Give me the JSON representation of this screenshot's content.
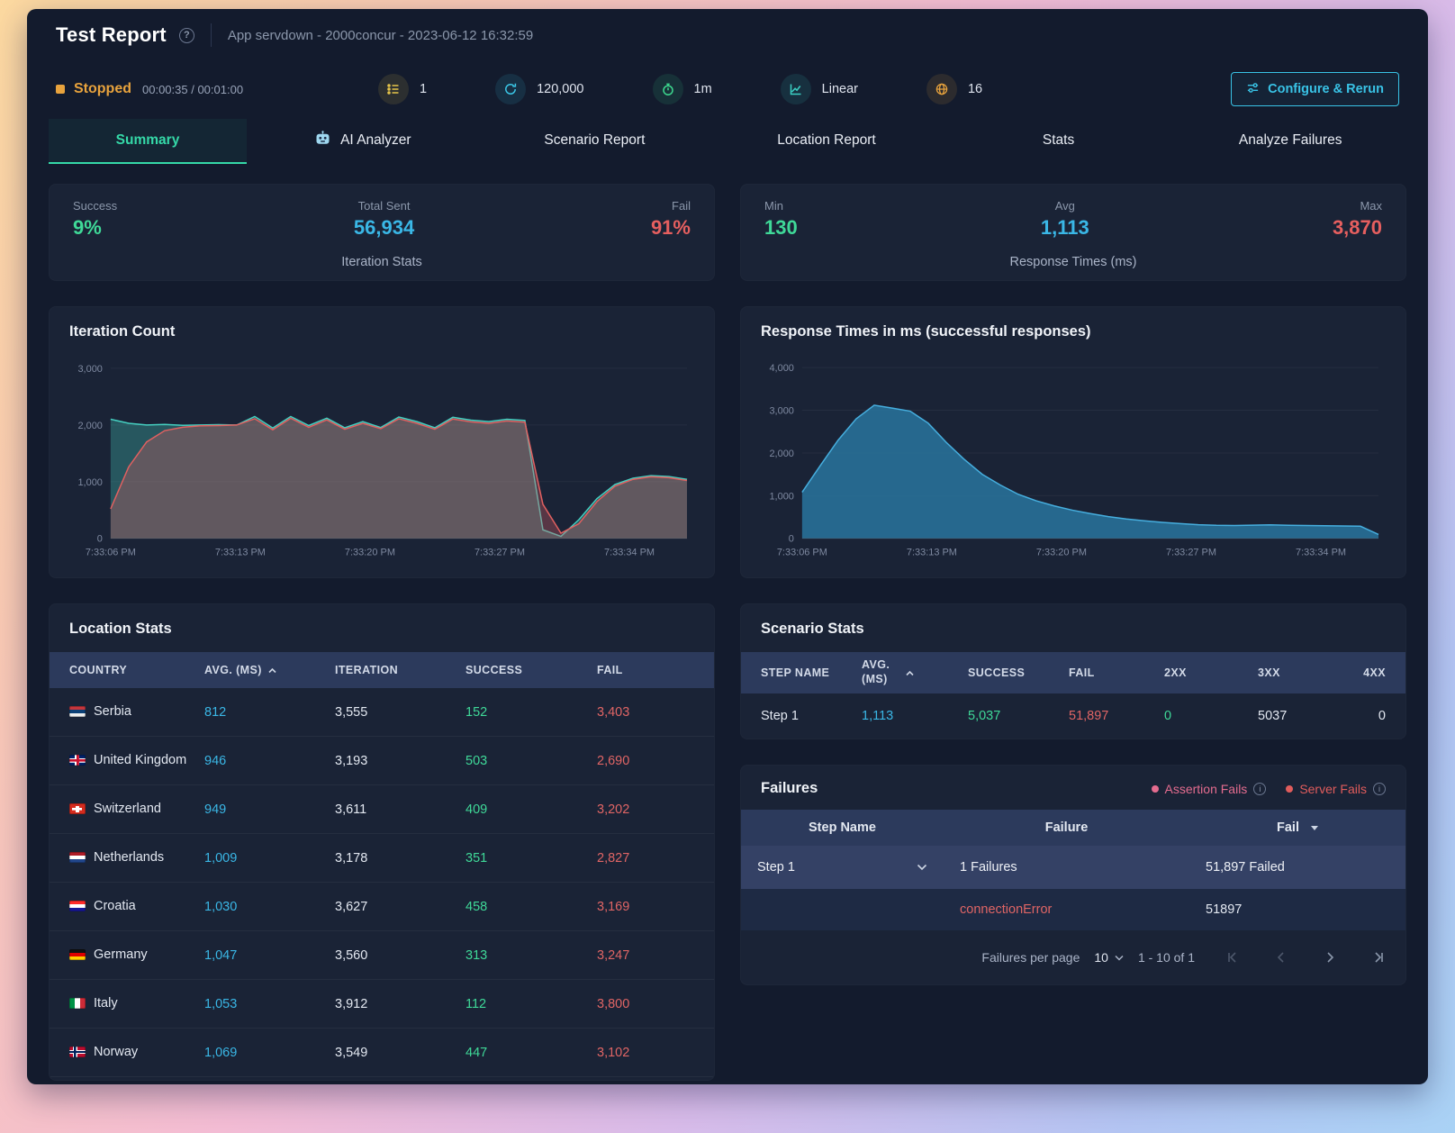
{
  "header": {
    "title": "Test Report",
    "subtitle": "App servdown - 2000concur - 2023-06-12 16:32:59"
  },
  "statusbar": {
    "status": "Stopped",
    "time": "00:00:35 / 00:01:00",
    "metrics": [
      {
        "name": "scenarios",
        "value": "1"
      },
      {
        "name": "iterations",
        "value": "120,000"
      },
      {
        "name": "duration",
        "value": "1m"
      },
      {
        "name": "ramp-type",
        "value": "Linear"
      },
      {
        "name": "locations",
        "value": "16"
      }
    ],
    "configure_button": "Configure & Rerun"
  },
  "tabs": [
    {
      "label": "Summary",
      "active": true
    },
    {
      "label": "AI Analyzer",
      "active": false
    },
    {
      "label": "Scenario Report",
      "active": false
    },
    {
      "label": "Location Report",
      "active": false
    },
    {
      "label": "Stats",
      "active": false
    },
    {
      "label": "Analyze Failures",
      "active": false
    }
  ],
  "iteration_stats": {
    "title": "Iteration Stats",
    "success_label": "Success",
    "success_value": "9%",
    "total_label": "Total Sent",
    "total_value": "56,934",
    "fail_label": "Fail",
    "fail_value": "91%"
  },
  "response_times": {
    "title": "Response Times (ms)",
    "min_label": "Min",
    "min_value": "130",
    "avg_label": "Avg",
    "avg_value": "1,113",
    "max_label": "Max",
    "max_value": "3,870"
  },
  "chart_data": [
    {
      "type": "area",
      "title": "Iteration Count",
      "x_labels": [
        "7:33:06 PM",
        "7:33:13 PM",
        "7:33:20 PM",
        "7:33:27 PM",
        "7:33:34 PM"
      ],
      "x_label_span": 0.9,
      "y_ticks": [
        {
          "v": 0,
          "label": "0"
        },
        {
          "v": 1000,
          "label": "1,000"
        },
        {
          "v": 2000,
          "label": "2,000"
        },
        {
          "v": 3000,
          "label": "3,000"
        }
      ],
      "ymax": 3200,
      "ylim": [
        0,
        3200
      ],
      "legend_position": "none",
      "grid": true,
      "series": [
        {
          "name": "success",
          "color": "#45cfc0",
          "fill": "rgba(69,207,192,0.30)",
          "values": [
            2100,
            2030,
            2000,
            2010,
            1995,
            2000,
            2005,
            2000,
            2150,
            1945,
            2150,
            1990,
            2120,
            1950,
            2060,
            1955,
            2140,
            2060,
            1950,
            2135,
            2085,
            2060,
            2100,
            2080,
            150,
            35,
            330,
            700,
            950,
            1060,
            1105,
            1090,
            1040
          ]
        },
        {
          "name": "fail",
          "color": "#e06060",
          "fill": "rgba(205,92,98,0.35)",
          "values": [
            520,
            1260,
            1700,
            1900,
            1960,
            1985,
            1990,
            2000,
            2110,
            1915,
            2120,
            1960,
            2090,
            1925,
            2030,
            1935,
            2110,
            2030,
            1925,
            2105,
            2055,
            2030,
            2070,
            2050,
            600,
            90,
            260,
            650,
            920,
            1040,
            1085,
            1070,
            1020
          ]
        }
      ]
    },
    {
      "type": "area",
      "title": "Response Times in ms (successful responses)",
      "x_labels": [
        "7:33:06 PM",
        "7:33:13 PM",
        "7:33:20 PM",
        "7:33:27 PM",
        "7:33:34 PM"
      ],
      "x_label_span": 0.9,
      "y_ticks": [
        {
          "v": 0,
          "label": "0"
        },
        {
          "v": 1000,
          "label": "1,000"
        },
        {
          "v": 2000,
          "label": "2,000"
        },
        {
          "v": 3000,
          "label": "3,000"
        },
        {
          "v": 4000,
          "label": "4,000"
        }
      ],
      "ymax": 4250,
      "ylim": [
        0,
        4250
      ],
      "legend_position": "none",
      "grid": true,
      "series": [
        {
          "name": "response_time",
          "color": "#46aede",
          "fill": "rgba(41,116,158,0.85)",
          "values": [
            1080,
            1700,
            2300,
            2800,
            3120,
            3050,
            2980,
            2700,
            2250,
            1850,
            1500,
            1250,
            1030,
            880,
            760,
            660,
            580,
            510,
            455,
            410,
            375,
            345,
            320,
            305,
            300,
            310,
            315,
            305,
            300,
            295,
            290,
            285,
            90
          ]
        }
      ]
    }
  ],
  "location_stats": {
    "title": "Location Stats",
    "columns": [
      "COUNTRY",
      "AVG. (MS)",
      "ITERATION",
      "SUCCESS",
      "FAIL"
    ],
    "sorted_column": "AVG. (MS)",
    "sort_direction": "asc",
    "rows": [
      {
        "country": "Serbia",
        "avg": "812",
        "iteration": "3,555",
        "success": "152",
        "fail": "3,403",
        "flag": {
          "type": "h",
          "colors": [
            "#c6363c",
            "#0c4076",
            "#eeeeee"
          ]
        }
      },
      {
        "country": "United Kingdom",
        "avg": "946",
        "iteration": "3,193",
        "success": "503",
        "fail": "2,690",
        "flag": {
          "type": "uk",
          "colors": [
            "#012169",
            "#ffffff",
            "#c8102e"
          ]
        }
      },
      {
        "country": "Switzerland",
        "avg": "949",
        "iteration": "3,611",
        "success": "409",
        "fail": "3,202",
        "flag": {
          "type": "cross",
          "colors": [
            "#d52b1e",
            "#ffffff"
          ]
        }
      },
      {
        "country": "Netherlands",
        "avg": "1,009",
        "iteration": "3,178",
        "success": "351",
        "fail": "2,827",
        "flag": {
          "type": "h",
          "colors": [
            "#ae1c28",
            "#ffffff",
            "#21468b"
          ]
        }
      },
      {
        "country": "Croatia",
        "avg": "1,030",
        "iteration": "3,627",
        "success": "458",
        "fail": "3,169",
        "flag": {
          "type": "h",
          "colors": [
            "#ff2b2b",
            "#ffffff",
            "#171796"
          ]
        }
      },
      {
        "country": "Germany",
        "avg": "1,047",
        "iteration": "3,560",
        "success": "313",
        "fail": "3,247",
        "flag": {
          "type": "h",
          "colors": [
            "#111111",
            "#dd0000",
            "#ffce00"
          ]
        }
      },
      {
        "country": "Italy",
        "avg": "1,053",
        "iteration": "3,912",
        "success": "112",
        "fail": "3,800",
        "flag": {
          "type": "v",
          "colors": [
            "#009246",
            "#ffffff",
            "#ce2b37"
          ]
        }
      },
      {
        "country": "Norway",
        "avg": "1,069",
        "iteration": "3,549",
        "success": "447",
        "fail": "3,102",
        "flag": {
          "type": "nordic",
          "colors": [
            "#ba0c2f",
            "#ffffff",
            "#00205b"
          ]
        }
      }
    ]
  },
  "scenario_stats": {
    "title": "Scenario Stats",
    "columns": [
      "STEP NAME",
      "AVG. (MS)",
      "SUCCESS",
      "FAIL",
      "2XX",
      "3XX",
      "4XX"
    ],
    "sorted_column": "AVG. (MS)",
    "sort_direction": "asc",
    "rows": [
      {
        "step": "Step 1",
        "avg": "1,113",
        "success": "5,037",
        "fail": "51,897",
        "xx2": "0",
        "xx3": "5037",
        "xx4": "0"
      }
    ]
  },
  "failures": {
    "title": "Failures",
    "legend": [
      {
        "label": "Assertion Fails",
        "color": "#e46c8f"
      },
      {
        "label": "Server Fails",
        "color": "#e05c5c"
      }
    ],
    "columns": [
      "Step Name",
      "Failure",
      "Fail"
    ],
    "rows": [
      {
        "step": "Step 1",
        "failure": "1 Failures",
        "fail": "51,897 Failed",
        "details": [
          {
            "failure": "connectionError",
            "fail": "51897"
          }
        ]
      }
    ],
    "pagination": {
      "per_page_label": "Failures per page",
      "per_page": "10",
      "range": "1 - 10 of 1"
    }
  }
}
